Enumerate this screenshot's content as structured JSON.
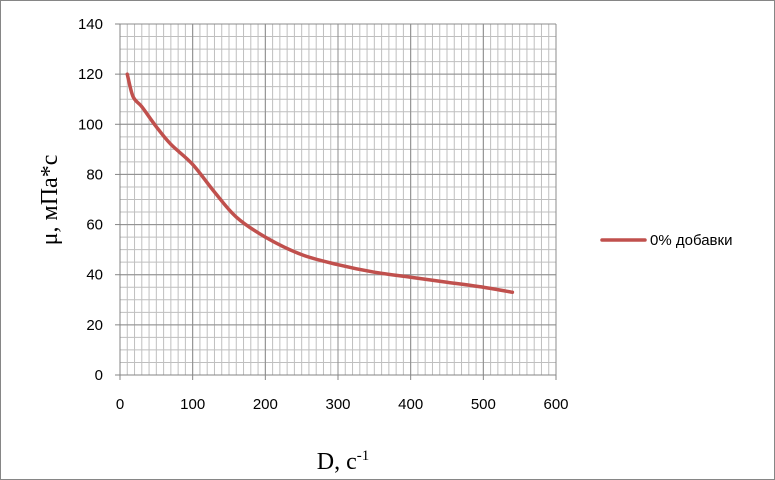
{
  "chart_data": {
    "type": "line",
    "title": "",
    "xlabel": "D, с",
    "xlabel_sup": "-1",
    "ylabel": "μ, мПа*с",
    "xlim": [
      0,
      600
    ],
    "ylim": [
      0,
      140
    ],
    "x_major_ticks": [
      0,
      100,
      200,
      300,
      400,
      500,
      600
    ],
    "y_major_ticks": [
      0,
      20,
      40,
      60,
      80,
      100,
      120,
      140
    ],
    "x_tick_labels": [
      "0",
      "100",
      "200",
      "300",
      "400",
      "500",
      "600"
    ],
    "y_tick_labels": [
      "0",
      "20",
      "40",
      "60",
      "80",
      "100",
      "120",
      "140"
    ],
    "grid": true,
    "minor_grid": true,
    "legend_position": "right",
    "series": [
      {
        "name": "0% добавки",
        "color": "#c0504d",
        "x": [
          10,
          18,
          30,
          50,
          70,
          100,
          130,
          160,
          200,
          250,
          300,
          350,
          400,
          450,
          500,
          540
        ],
        "y": [
          120,
          111,
          107,
          99,
          92,
          84,
          73,
          63,
          55,
          48,
          44,
          41,
          39,
          37,
          35,
          33
        ]
      }
    ]
  }
}
